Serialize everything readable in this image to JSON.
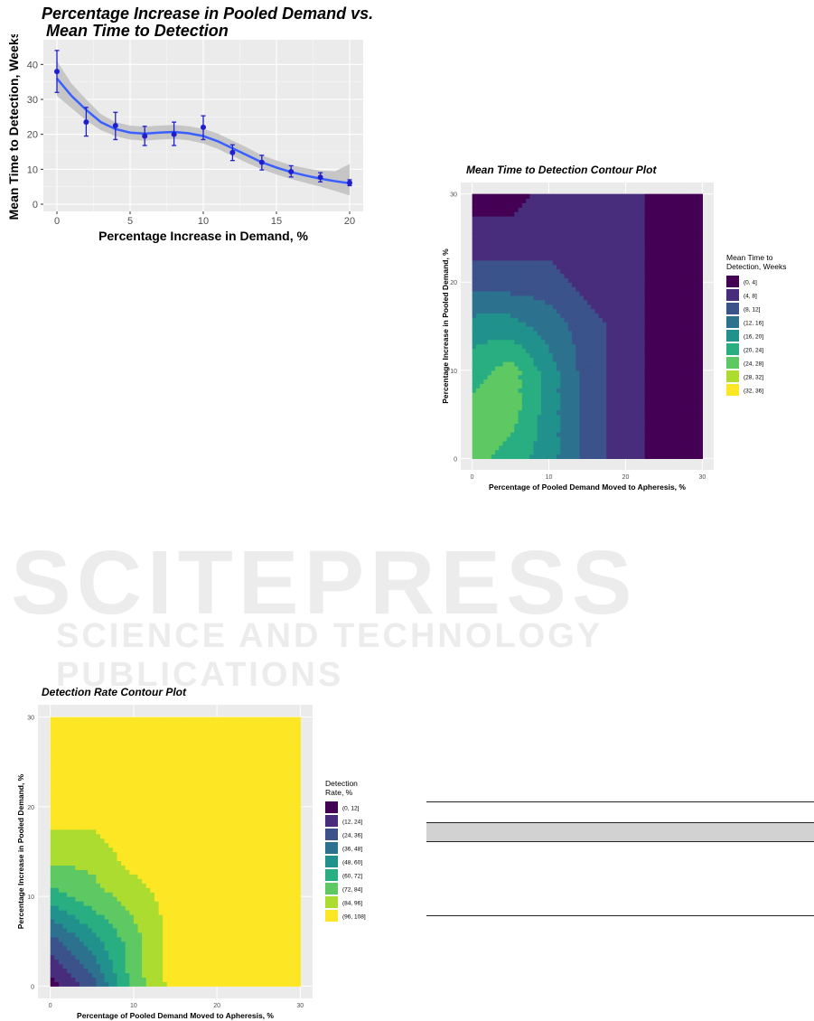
{
  "watermark": {
    "line1": "SCITEPRESS",
    "line2": "SCIENCE AND TECHNOLOGY PUBLICATIONS"
  },
  "chart_data": [
    {
      "type": "scatter",
      "title": "Percentage Increase in Pooled Demand vs.\n Mean Time to Detection",
      "title_line1": "Percentage Increase in Pooled Demand vs.",
      "title_line2": " Mean Time to Detection",
      "xlabel": "Percentage Increase in Demand, %",
      "ylabel": "Mean Time to Detection, Weeks",
      "xlim": [
        0,
        20
      ],
      "ylim": [
        0,
        45
      ],
      "xticks": [
        0,
        5,
        10,
        15,
        20
      ],
      "yticks": [
        0,
        10,
        20,
        30,
        40
      ],
      "x": [
        0,
        2,
        4,
        6,
        8,
        10,
        12,
        14,
        16,
        18,
        20
      ],
      "y": [
        38,
        23.5,
        22.5,
        19.5,
        20,
        22,
        14.8,
        12,
        9.3,
        7.7,
        6.1
      ],
      "err_low": [
        32,
        19.5,
        18.5,
        16.8,
        16.8,
        18.5,
        12.5,
        9.8,
        7.8,
        6.4,
        5.3
      ],
      "err_high": [
        44,
        27.7,
        26.3,
        22.3,
        23.5,
        25.3,
        17,
        14,
        11,
        9,
        7
      ],
      "smooth": {
        "x": [
          0,
          1,
          2,
          3,
          4,
          5,
          6,
          7,
          8,
          9,
          10,
          11,
          12,
          13,
          14,
          15,
          16,
          17,
          18,
          19,
          20
        ],
        "y": [
          36,
          31,
          27,
          23.5,
          21.5,
          20.5,
          20.2,
          20.5,
          20.7,
          20.3,
          19.5,
          18,
          16,
          14,
          12,
          10.5,
          9.2,
          8.2,
          7.3,
          6.6,
          6.0
        ],
        "lower": [
          31,
          27.5,
          24,
          21.2,
          19.5,
          18.5,
          18.2,
          18.5,
          18.7,
          18.3,
          17.4,
          15.8,
          13.8,
          11.8,
          10,
          8.5,
          7.2,
          6.1,
          5,
          3.8,
          2.5
        ],
        "upper": [
          41,
          34.5,
          30,
          25.8,
          23.5,
          22.5,
          22.2,
          22.5,
          22.7,
          22.3,
          21.6,
          20.2,
          18.2,
          16.2,
          14,
          12.5,
          11.2,
          10.3,
          9.6,
          9.4,
          11.5
        ]
      },
      "colors": {
        "points": "#1f1fd0",
        "line": "#3a5fff",
        "ribbon": "#c2c2c2",
        "panel": "#ebebeb"
      }
    },
    {
      "type": "heatmap",
      "title": "Mean Time to Detection Contour Plot",
      "xlabel": "Percentage of Pooled Demand Moved to Apheresis, %",
      "ylabel": "Percentage Increase in Pooled Demand, %",
      "xlim": [
        0,
        30
      ],
      "ylim": [
        0,
        30
      ],
      "xticks": [
        0,
        10,
        20,
        30
      ],
      "yticks": [
        0,
        10,
        20,
        30
      ],
      "legend_title": "Mean Time to\nDetection, Weeks",
      "legend_title_line1": "Mean Time to",
      "legend_title_line2": "Detection, Weeks",
      "legend_labels": [
        "(0, 4]",
        "(4, 8]",
        "(8, 12]",
        "(12, 16]",
        "(16, 20]",
        "(20, 24]",
        "(24, 28]",
        "(28, 32]",
        "(32, 36]"
      ],
      "legend_colors": [
        "#440154",
        "#472d7b",
        "#3b528b",
        "#2c728e",
        "#21918c",
        "#28ae80",
        "#5ec962",
        "#addc30",
        "#fde725"
      ],
      "grid_x": [
        0,
        5,
        10,
        15,
        20,
        25,
        30
      ],
      "grid_y": [
        0,
        5,
        10,
        15,
        20,
        25,
        30
      ],
      "levels": [
        [
          6,
          5,
          4,
          2,
          1,
          0,
          0
        ],
        [
          6,
          6,
          4,
          2,
          1,
          0,
          0
        ],
        [
          5,
          6,
          4,
          2,
          1,
          0,
          0
        ],
        [
          4,
          4,
          3,
          2,
          1,
          0,
          0
        ],
        [
          2,
          2,
          2,
          1,
          1,
          0,
          0
        ],
        [
          1,
          1,
          1,
          1,
          1,
          0,
          0
        ],
        [
          0,
          0,
          1,
          1,
          1,
          0,
          0
        ]
      ]
    },
    {
      "type": "heatmap",
      "title": "Detection Rate Contour Plot",
      "xlabel": "Percentage of Pooled Demand Moved to Apheresis, %",
      "ylabel": "Percentage Increase in Pooled Demand, %",
      "xlim": [
        0,
        30
      ],
      "ylim": [
        0,
        30
      ],
      "xticks": [
        0,
        10,
        20,
        30
      ],
      "yticks": [
        0,
        10,
        20,
        30
      ],
      "legend_title": "Detection\nRate, %",
      "legend_title_line1": "Detection",
      "legend_title_line2": "Rate, %",
      "legend_labels": [
        "(0, 12]",
        "(12, 24]",
        "(24, 36]",
        "(36, 48]",
        "(48, 60]",
        "(60, 72]",
        "(72, 84]",
        "(84, 96]",
        "(96, 108]"
      ],
      "legend_colors": [
        "#440154",
        "#472d7b",
        "#3b528b",
        "#2c728e",
        "#21918c",
        "#28ae80",
        "#5ec962",
        "#addc30",
        "#fde725"
      ],
      "grid_x": [
        0,
        5,
        10,
        15,
        20,
        25,
        30
      ],
      "grid_y": [
        0,
        5,
        10,
        15,
        20,
        25,
        30
      ],
      "levels": [
        [
          0,
          2,
          6,
          8,
          8,
          8,
          8
        ],
        [
          2,
          4,
          6,
          8,
          8,
          8,
          8
        ],
        [
          5,
          6,
          7,
          8,
          8,
          8,
          8
        ],
        [
          7,
          7,
          8,
          8,
          8,
          8,
          8
        ],
        [
          8,
          8,
          8,
          8,
          8,
          8,
          8
        ],
        [
          8,
          8,
          8,
          8,
          8,
          8,
          8
        ],
        [
          8,
          8,
          8,
          8,
          8,
          8,
          8
        ]
      ]
    }
  ]
}
